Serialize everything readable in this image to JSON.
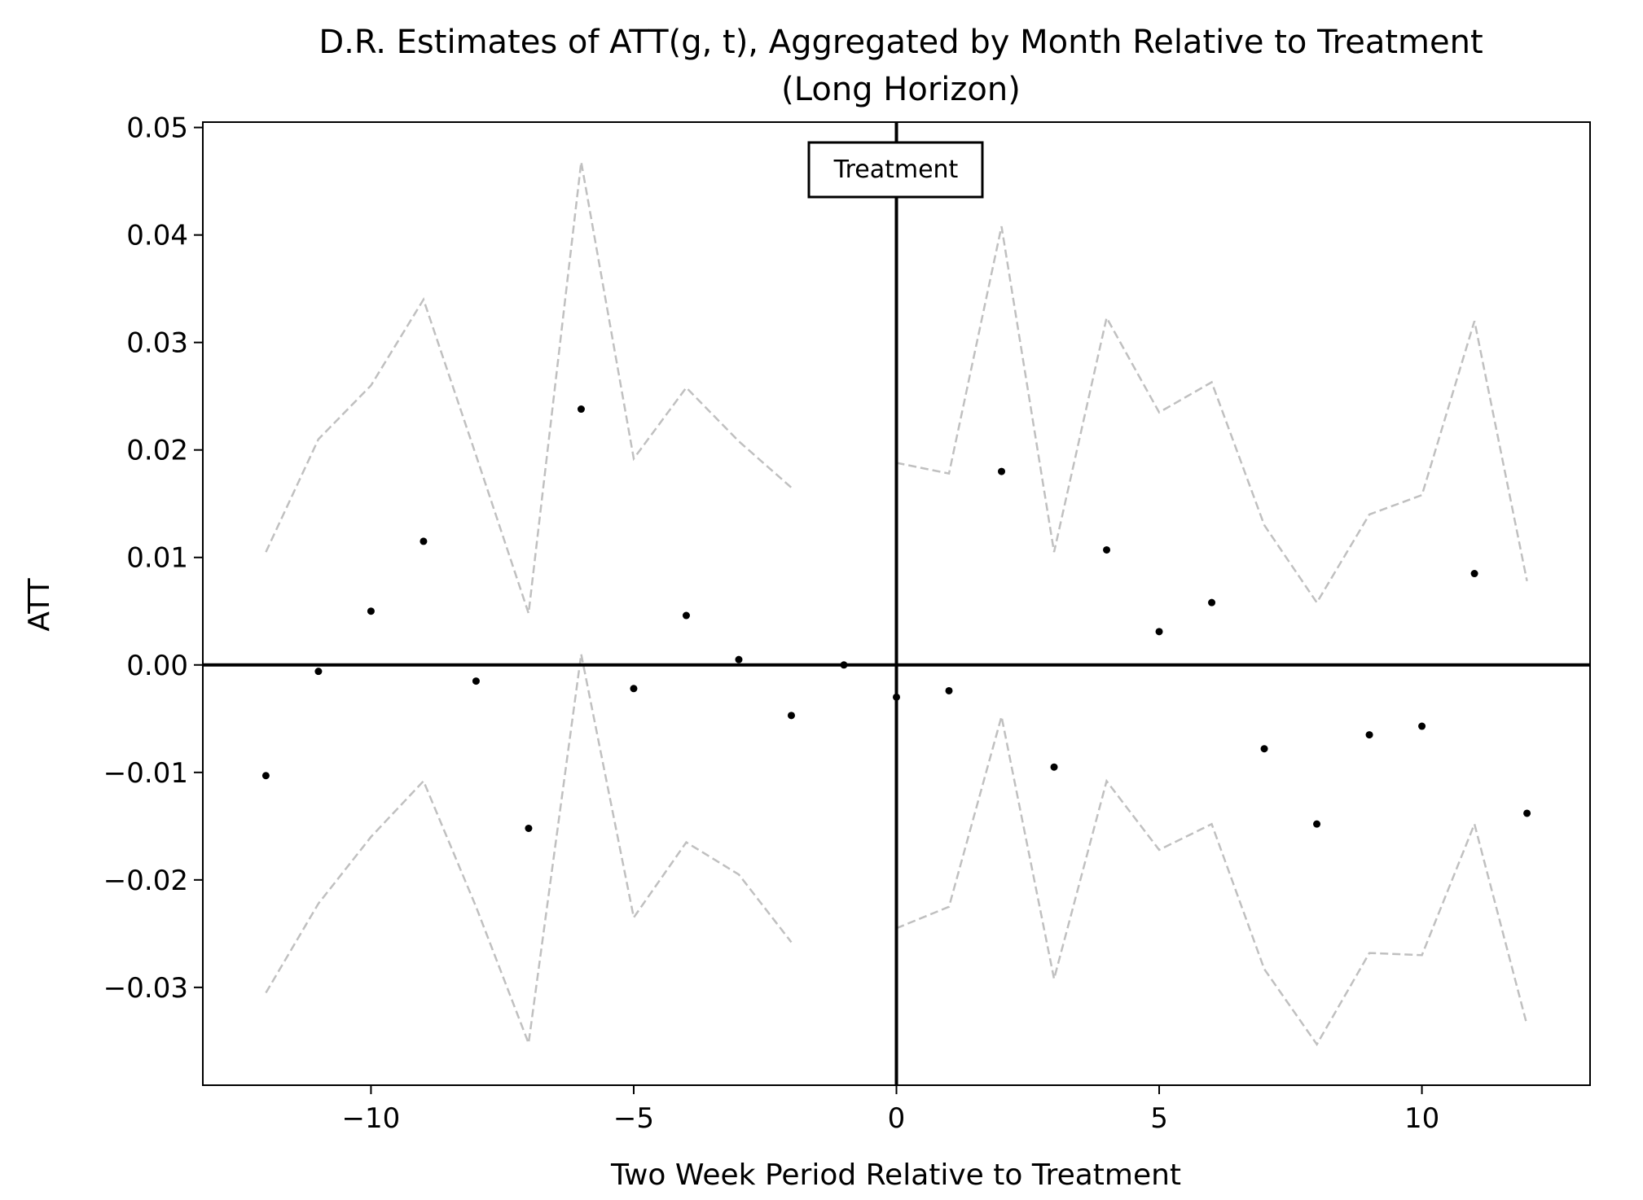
{
  "chart_data": {
    "type": "scatter",
    "title": "D.R. Estimates of ATT(g, t), Aggregated by Month Relative to Treatment",
    "subtitle": "(Long Horizon)",
    "xlabel": "Two Week Period Relative to Treatment",
    "ylabel": "ATT",
    "xlim": [
      -13.2,
      13.2
    ],
    "ylim": [
      -0.0391,
      0.0505
    ],
    "x_ticks": [
      -10,
      -5,
      0,
      5,
      10
    ],
    "x_tick_labels": [
      "−10",
      "−5",
      "0",
      "5",
      "10"
    ],
    "y_ticks": [
      -0.03,
      -0.02,
      -0.01,
      0.0,
      0.01,
      0.02,
      0.03,
      0.04,
      0.05
    ],
    "y_tick_labels": [
      "−0.03",
      "−0.02",
      "−0.01",
      "0.00",
      "0.01",
      "0.02",
      "0.03",
      "0.04",
      "0.05"
    ],
    "grid": false,
    "annotation": "Treatment",
    "reference_lines": {
      "vertical_x": 0,
      "horizontal_y": 0
    },
    "points": {
      "x": [
        -12,
        -11,
        -10,
        -9,
        -8,
        -7,
        -6,
        -5,
        -4,
        -3,
        -2,
        -1,
        0,
        1,
        2,
        3,
        4,
        5,
        6,
        7,
        8,
        9,
        10,
        11,
        12
      ],
      "y": [
        -0.0103,
        -0.0006,
        0.005,
        0.0115,
        -0.0015,
        -0.0152,
        0.0238,
        -0.0022,
        0.0046,
        0.0005,
        -0.0047,
        0.0,
        -0.003,
        -0.0024,
        0.018,
        -0.0095,
        0.0107,
        0.0031,
        0.0058,
        -0.0078,
        -0.0148,
        -0.0065,
        -0.0057,
        0.0085,
        -0.0138
      ]
    },
    "confidence_band": {
      "pre": {
        "x": [
          -12,
          -11,
          -10,
          -9,
          -8,
          -7,
          -6,
          -5,
          -4,
          -3,
          -2
        ],
        "upper": [
          0.0105,
          0.021,
          0.026,
          0.034,
          0.0195,
          0.0048,
          0.0468,
          0.0192,
          0.0258,
          0.0208,
          0.0165
        ],
        "lower": [
          -0.0305,
          -0.0222,
          -0.016,
          -0.0108,
          -0.0225,
          -0.0352,
          0.001,
          -0.0235,
          -0.0165,
          -0.0195,
          -0.0258
        ]
      },
      "post": {
        "x": [
          0,
          1,
          2,
          3,
          4,
          5,
          6,
          7,
          8,
          9,
          10,
          11,
          12
        ],
        "upper": [
          0.0188,
          0.0178,
          0.0408,
          0.0105,
          0.0323,
          0.0235,
          0.0263,
          0.013,
          0.0058,
          0.014,
          0.0158,
          0.032,
          0.0078
        ],
        "lower": [
          -0.0245,
          -0.0225,
          -0.0048,
          -0.0292,
          -0.0108,
          -0.0172,
          -0.0148,
          -0.0283,
          -0.0353,
          -0.0268,
          -0.027,
          -0.0148,
          -0.0335
        ]
      }
    },
    "colors": {
      "points": "#000000",
      "band": "#c0c0c0",
      "reference_lines": "#000000"
    }
  }
}
